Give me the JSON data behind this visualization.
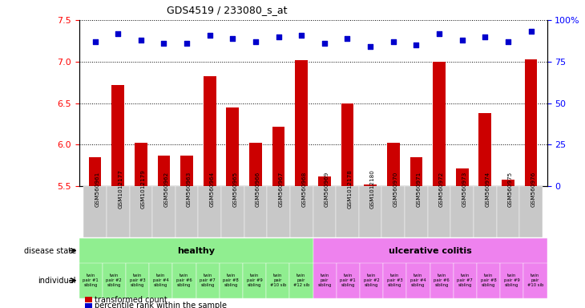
{
  "title": "GDS4519 / 233080_s_at",
  "samples": [
    "GSM560961",
    "GSM1012177",
    "GSM1012179",
    "GSM560962",
    "GSM560963",
    "GSM560964",
    "GSM560965",
    "GSM560966",
    "GSM560967",
    "GSM560968",
    "GSM560969",
    "GSM1012178",
    "GSM1012180",
    "GSM560970",
    "GSM560971",
    "GSM560972",
    "GSM560973",
    "GSM560974",
    "GSM560975",
    "GSM560976"
  ],
  "bar_values": [
    5.85,
    6.72,
    6.02,
    5.87,
    5.87,
    6.82,
    6.45,
    6.02,
    6.22,
    7.02,
    5.62,
    6.5,
    5.52,
    6.02,
    5.85,
    7.0,
    5.72,
    6.38,
    5.58,
    7.03
  ],
  "percentile_values": [
    87,
    92,
    88,
    86,
    86,
    91,
    89,
    87,
    90,
    91,
    86,
    89,
    84,
    87,
    85,
    92,
    88,
    90,
    87,
    93
  ],
  "ylim_left": [
    5.5,
    7.5
  ],
  "ylim_right": [
    0,
    100
  ],
  "yticks_left": [
    5.5,
    6.0,
    6.5,
    7.0,
    7.5
  ],
  "yticks_right": [
    0,
    25,
    50,
    75,
    100
  ],
  "bar_color": "#cc0000",
  "dot_color": "#0000cc",
  "healthy_color": "#90ee90",
  "uc_color": "#ee82ee",
  "xticklabel_bg": "#c8c8c8",
  "legend_bar": "transformed count",
  "legend_dot": "percentile rank within the sample",
  "disease_label": "disease state",
  "individual_label": "individual",
  "healthy_text": "healthy",
  "uc_text": "ulcerative colitis",
  "n_healthy": 10,
  "n_total": 20,
  "bar_width": 0.55,
  "ind_labels": [
    "twin\npair #1\nsibling",
    "twin\npair #2\nsibling",
    "twin\npair #3\nsibling",
    "twin\npair #4\nsibling",
    "twin\npair #6\nsibling",
    "twin\npair #7\nsibling",
    "twin\npair #8\nsibling",
    "twin\npair #9\nsibling",
    "twin\npair\n#10 sib",
    "twin\npair\n#12 sib",
    "twin\npair\nsibling",
    "twin\npair #1\nsibling",
    "twin\npair #2\nsibling",
    "twin\npair #3\nsibling",
    "twin\npair #4\nsibling",
    "twin\npair #6\nsibling",
    "twin\npair #7\nsibling",
    "twin\npair #8\nsibling",
    "twin\npair #9\nsibling",
    "twin\npair\n#10 sib"
  ]
}
